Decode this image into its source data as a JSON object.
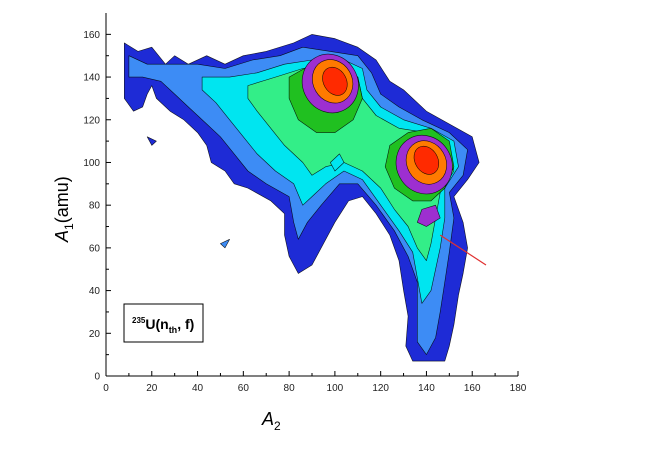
{
  "chart_data": {
    "type": "contour",
    "title": "",
    "xlabel": {
      "main": "A",
      "sub": "2"
    },
    "ylabel": {
      "main": "A",
      "sub": "1",
      "suffix": "(amu)"
    },
    "xlim": [
      0,
      180
    ],
    "ylim": [
      0,
      170
    ],
    "x_ticks": [
      0,
      20,
      40,
      60,
      80,
      100,
      120,
      140,
      160,
      180
    ],
    "y_ticks": [
      0,
      20,
      40,
      60,
      80,
      100,
      120,
      140,
      160
    ],
    "grid": false,
    "annotation": {
      "sup": "235",
      "main": "U(n",
      "sub": "th",
      "tail": ", f)"
    },
    "peaks": [
      {
        "x": 100,
        "y": 137
      },
      {
        "x": 139,
        "y": 100
      }
    ],
    "arrow": {
      "from": [
        166,
        52
      ],
      "to": [
        146,
        66
      ]
    },
    "color_levels": [
      "#1e2bd6",
      "#3d8cf5",
      "#00e5f0",
      "#33ee88",
      "#20c020",
      "#9d2fd0",
      "#ff7a00",
      "#ff2a00"
    ]
  }
}
